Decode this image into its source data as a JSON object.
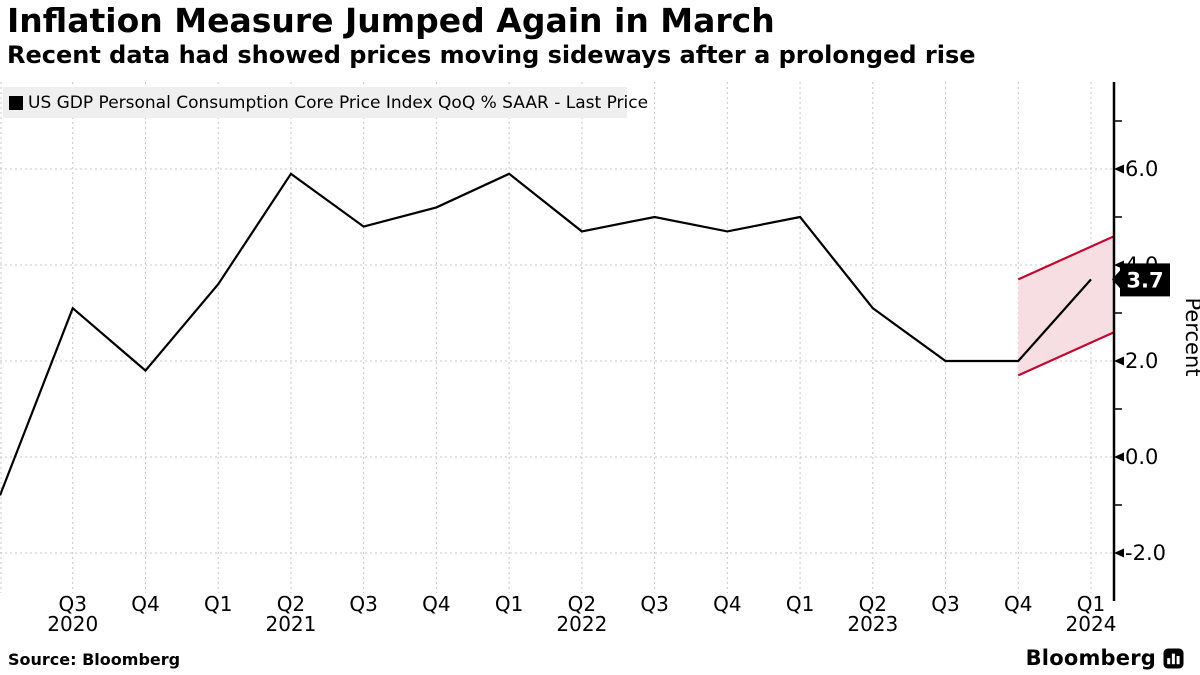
{
  "title": "Inflation Measure Jumped Again in March",
  "subtitle": "Recent data had showed prices moving sideways after a prolonged rise",
  "legend": {
    "swatch_icon": "black-square",
    "label": "US GDP Personal Consumption Core Price Index QoQ % SAAR - Last Price"
  },
  "source": "Source: Bloomberg",
  "brand": {
    "name": "Bloomberg",
    "icon": "bloomberg-terminal-icon"
  },
  "colors": {
    "line": "#000000",
    "grid": "#c8c8c8",
    "band_fill": "#f6dee3",
    "band_border": "#bf0a30",
    "badge_bg": "#000000",
    "badge_text": "#ffffff",
    "legend_bg": "#efefef",
    "axis": "#000000"
  },
  "chart_data": {
    "type": "line",
    "title": "Inflation Measure Jumped Again in March",
    "ylabel": "Percent",
    "xlabel": "",
    "ylim": [
      -2.8,
      7.8
    ],
    "grid": {
      "horizontal": true,
      "vertical": true,
      "style": "dashed"
    },
    "legend_position": "top-left",
    "y_major_ticks": [
      6.0,
      4.0,
      2.0,
      0.0,
      -2.0
    ],
    "y_minor_ticks": [
      7.0,
      5.0,
      3.0,
      1.0,
      -1.0
    ],
    "y_tick_labels": [
      "6.0",
      "4.0",
      "2.0",
      "0.0",
      "-2.0"
    ],
    "series": [
      {
        "name": "US GDP Personal Consumption Core Price Index QoQ % SAAR - Last Price",
        "color": "#000000",
        "x": [
          "Q2 2020",
          "Q3 2020",
          "Q4 2020",
          "Q1 2021",
          "Q2 2021",
          "Q3 2021",
          "Q4 2021",
          "Q1 2022",
          "Q2 2022",
          "Q3 2022",
          "Q4 2022",
          "Q1 2023",
          "Q2 2023",
          "Q3 2023",
          "Q4 2023",
          "Q1 2024"
        ],
        "values": [
          -0.8,
          3.1,
          1.8,
          3.6,
          5.9,
          4.8,
          5.2,
          5.9,
          4.7,
          5.0,
          4.7,
          5.0,
          3.1,
          2.0,
          2.0,
          3.7
        ]
      }
    ],
    "x_year_labels": [
      {
        "index": 1,
        "text": "2020"
      },
      {
        "index": 4,
        "text": "2021"
      },
      {
        "index": 8,
        "text": "2022"
      },
      {
        "index": 12,
        "text": "2023"
      },
      {
        "index": 15,
        "text": "2024"
      }
    ],
    "last_price": {
      "value": 3.7,
      "label": "3.7"
    },
    "highlight_band": {
      "from_quarter": "Q4 2023",
      "to": "right-axis",
      "top_start_value": 3.7,
      "top_end_value": 4.6,
      "bottom_start_value": 1.7,
      "bottom_end_value": 2.6
    }
  }
}
